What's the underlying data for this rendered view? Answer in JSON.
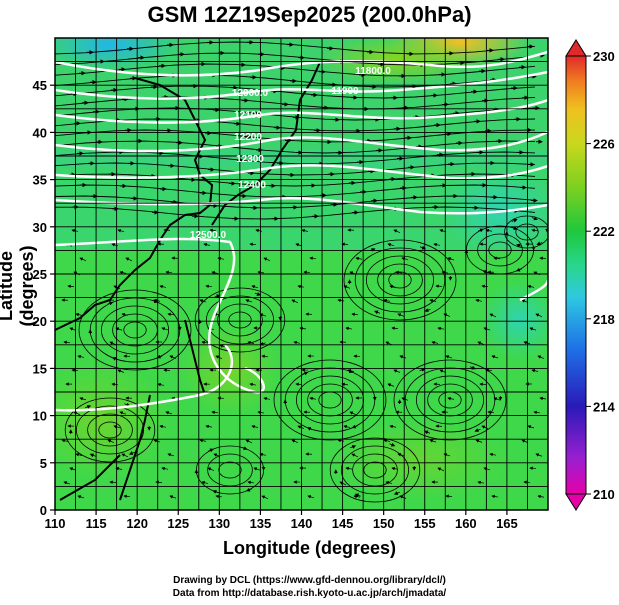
{
  "title": "GSM 12Z19Sep2025 (200.0hPa)",
  "x_axis": {
    "label": "Longitude (degrees)",
    "range": [
      110,
      170
    ],
    "ticks": [
      110,
      115,
      120,
      125,
      130,
      135,
      140,
      145,
      150,
      155,
      160,
      165
    ]
  },
  "y_axis": {
    "label": "Latitude  (degrees)",
    "range": [
      0,
      50
    ],
    "ticks": [
      0,
      5,
      10,
      15,
      20,
      25,
      30,
      35,
      40,
      45
    ]
  },
  "colorbar": {
    "ticks": [
      230,
      226,
      222,
      218,
      214,
      210
    ],
    "range": [
      210,
      230
    ],
    "colors": [
      "#e600a8",
      "#9b1fd0",
      "#2a1ab8",
      "#1e70e6",
      "#2ec8e0",
      "#29d68e",
      "#1fc83c",
      "#7cd020",
      "#c8d81c",
      "#f0c020",
      "#f08020",
      "#e02a2a"
    ]
  },
  "contour_labels": [
    "11800.0",
    "11900",
    "12000.0",
    "12100",
    "12200",
    "12300",
    "12400",
    "12500.0"
  ],
  "credits": {
    "line1": "Drawing by DCL (https://www.gfd-dennou.org/library/dcl/)",
    "line2": "Data from http://database.rish.kyoto-u.ac.jp/arch/jmadata/"
  }
}
